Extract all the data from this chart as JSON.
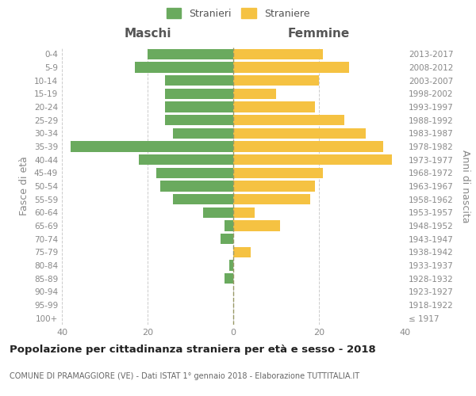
{
  "age_groups": [
    "100+",
    "95-99",
    "90-94",
    "85-89",
    "80-84",
    "75-79",
    "70-74",
    "65-69",
    "60-64",
    "55-59",
    "50-54",
    "45-49",
    "40-44",
    "35-39",
    "30-34",
    "25-29",
    "20-24",
    "15-19",
    "10-14",
    "5-9",
    "0-4"
  ],
  "birth_years": [
    "≤ 1917",
    "1918-1922",
    "1923-1927",
    "1928-1932",
    "1933-1937",
    "1938-1942",
    "1943-1947",
    "1948-1952",
    "1953-1957",
    "1958-1962",
    "1963-1967",
    "1968-1972",
    "1973-1977",
    "1978-1982",
    "1983-1987",
    "1988-1992",
    "1993-1997",
    "1998-2002",
    "2003-2007",
    "2008-2012",
    "2013-2017"
  ],
  "maschi": [
    0,
    0,
    0,
    2,
    1,
    0,
    3,
    2,
    7,
    14,
    17,
    18,
    22,
    38,
    14,
    16,
    16,
    16,
    16,
    23,
    20
  ],
  "femmine": [
    0,
    0,
    0,
    0,
    0,
    4,
    0,
    11,
    5,
    18,
    19,
    21,
    37,
    35,
    31,
    26,
    19,
    10,
    20,
    27,
    21
  ],
  "maschi_color": "#6aaa5e",
  "femmine_color": "#f5c242",
  "bg_color": "#ffffff",
  "grid_color": "#cccccc",
  "axis_label_color": "#888888",
  "title": "Popolazione per cittadinanza straniera per età e sesso - 2018",
  "subtitle": "COMUNE DI PRAMAGGIORE (VE) - Dati ISTAT 1° gennaio 2018 - Elaborazione TUTTITALIA.IT",
  "xlabel_left": "Maschi",
  "xlabel_right": "Femmine",
  "ylabel_left": "Fasce di età",
  "ylabel_right": "Anni di nascita",
  "legend_maschi": "Stranieri",
  "legend_femmine": "Straniere",
  "xlim": 40,
  "bar_height": 0.8
}
